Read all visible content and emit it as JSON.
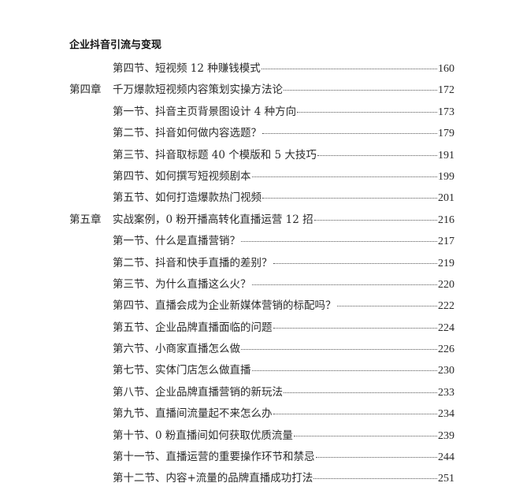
{
  "header": {
    "book_title": "企业抖音引流与变现"
  },
  "toc": [
    {
      "chapter": "",
      "title": "第四节、短视频 12 种赚钱模式",
      "page": "160"
    },
    {
      "chapter": "第四章",
      "title": "千万爆款短视频内容策划实操方法论",
      "page": "172"
    },
    {
      "chapter": "",
      "title": "第一节、抖音主页背景图设计 4 种方向",
      "page": "173"
    },
    {
      "chapter": "",
      "title": "第二节、抖音如何做内容选题？",
      "page": "179"
    },
    {
      "chapter": "",
      "title": "第三节、抖音取标题 40 个模版和 5 大技巧",
      "page": "191"
    },
    {
      "chapter": "",
      "title": "第四节、如何撰写短视频剧本",
      "page": "199"
    },
    {
      "chapter": "",
      "title": "第五节、如何打造爆款热门视频",
      "page": "201"
    },
    {
      "chapter": "第五章",
      "title": "实战案例，0 粉开播高转化直播运营 12 招",
      "page": "216"
    },
    {
      "chapter": "",
      "title": "第一节、什么是直播营销？",
      "page": "217"
    },
    {
      "chapter": "",
      "title": "第二节、抖音和快手直播的差别？",
      "page": "219"
    },
    {
      "chapter": "",
      "title": "第三节、为什么直播这么火？",
      "page": "220"
    },
    {
      "chapter": "",
      "title": "第四节、直播会成为企业新媒体营销的标配吗？",
      "page": "222"
    },
    {
      "chapter": "",
      "title": "第五节、企业品牌直播面临的问题",
      "page": "224"
    },
    {
      "chapter": "",
      "title": "第六节、小商家直播怎么做",
      "page": "226"
    },
    {
      "chapter": "",
      "title": "第七节、实体门店怎么做直播",
      "page": "230"
    },
    {
      "chapter": "",
      "title": "第八节、企业品牌直播营销的新玩法",
      "page": "233"
    },
    {
      "chapter": "",
      "title": "第九节、直播间流量起不来怎么办",
      "page": "234"
    },
    {
      "chapter": "",
      "title": "第十节、0 粉直播间如何获取优质流量",
      "page": "239"
    },
    {
      "chapter": "",
      "title": "第十一节、直播运营的重要操作环节和禁忌",
      "page": "244"
    },
    {
      "chapter": "",
      "title": "第十二节、内容+流量的品牌直播成功打法",
      "page": "251"
    }
  ]
}
